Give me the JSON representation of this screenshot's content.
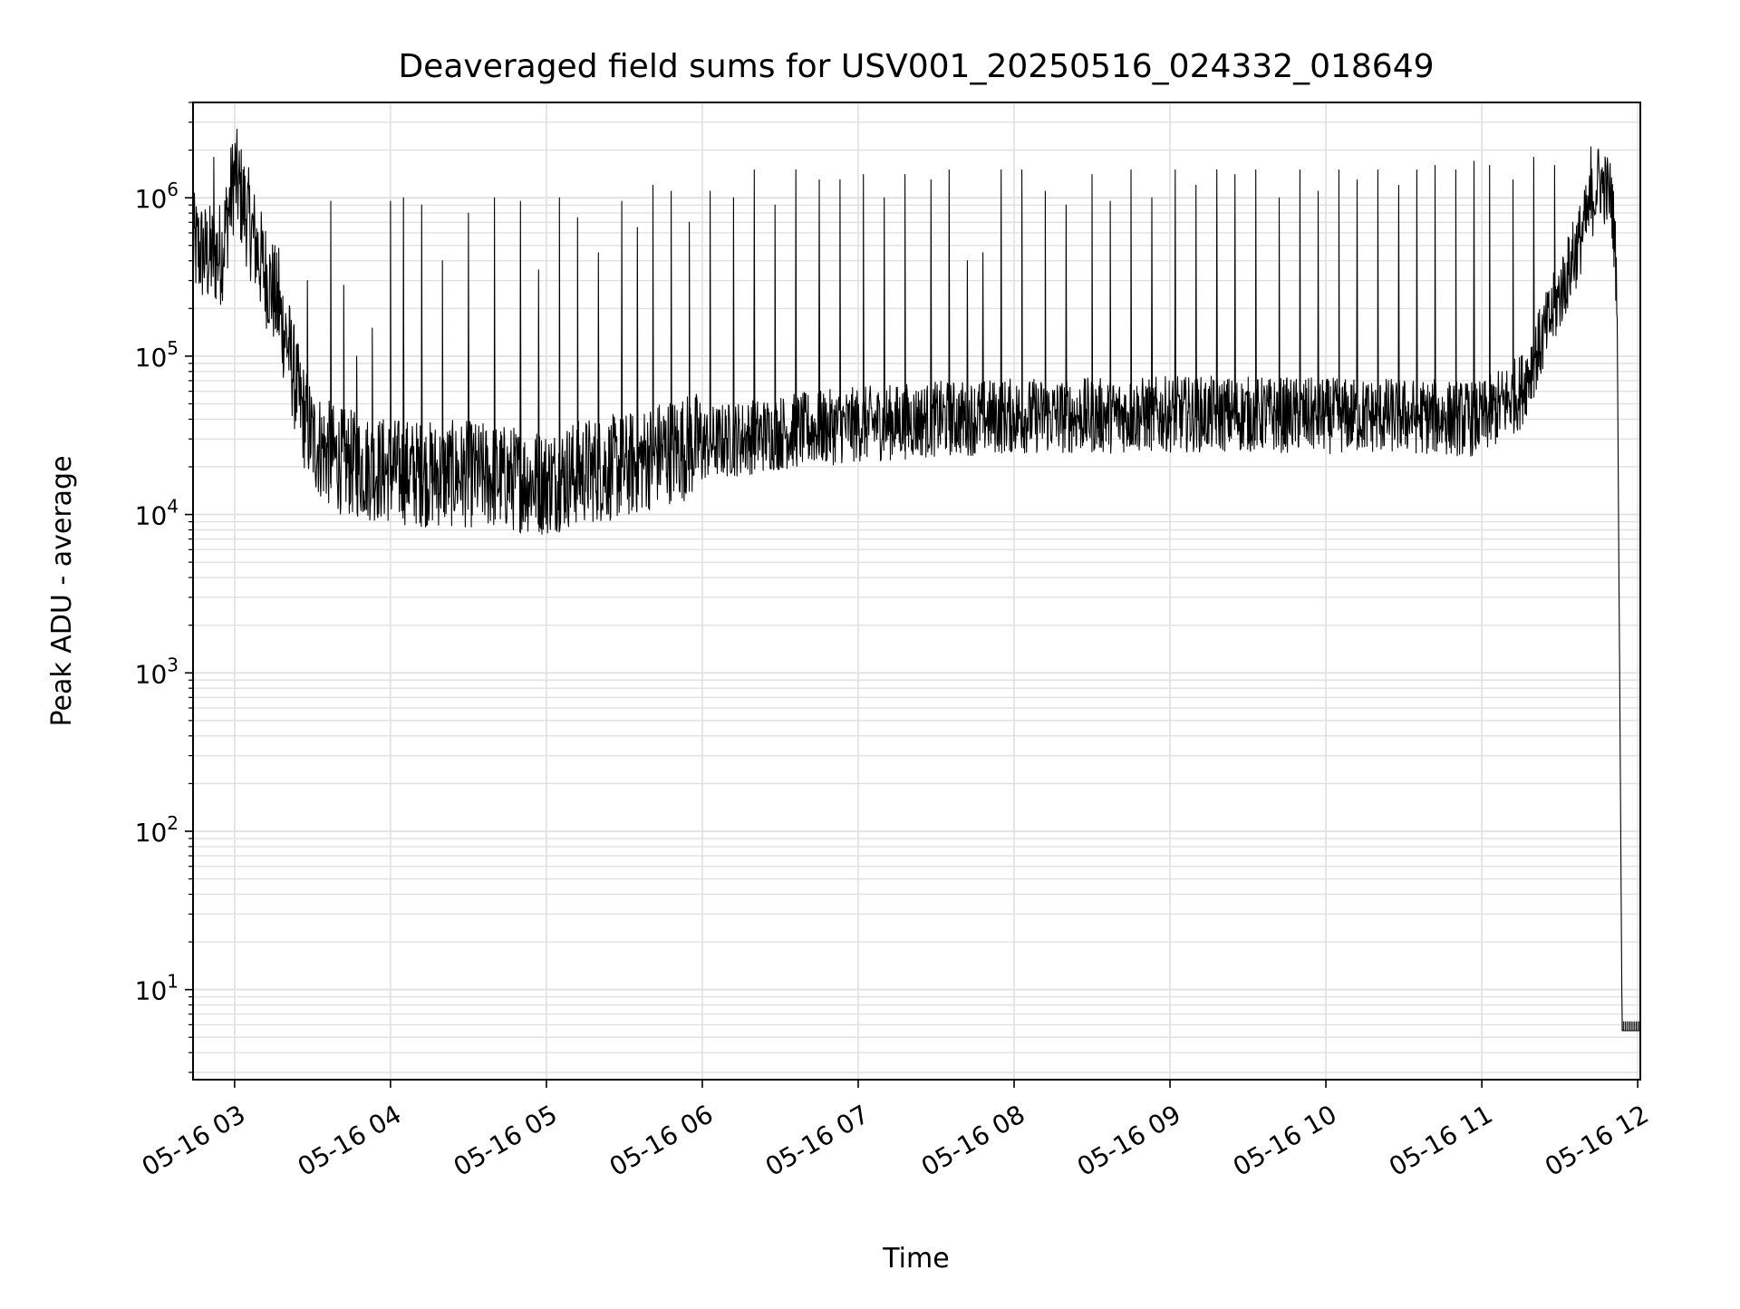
{
  "chart_data": {
    "type": "line",
    "title": "Deaveraged field sums for USV001_20250516_024332_018649",
    "xlabel": "Time",
    "ylabel": "Peak ADU - average",
    "yscale": "log",
    "ylim": [
      2.7,
      4000000
    ],
    "xlim": [
      "05-16 02:44",
      "05-16 12:01"
    ],
    "grid": true,
    "legend": "none",
    "x_ticks": [
      "05-16 03",
      "05-16 04",
      "05-16 05",
      "05-16 06",
      "05-16 07",
      "05-16 08",
      "05-16 09",
      "05-16 10",
      "05-16 11",
      "05-16 12"
    ],
    "y_ticks": [
      {
        "base": "10",
        "exp": "1"
      },
      {
        "base": "10",
        "exp": "2"
      },
      {
        "base": "10",
        "exp": "3"
      },
      {
        "base": "10",
        "exp": "4"
      },
      {
        "base": "10",
        "exp": "5"
      },
      {
        "base": "10",
        "exp": "6"
      }
    ],
    "line_color": "#000000",
    "grid_color": "#e0e0e0",
    "series": [
      {
        "x": [
          "05-16 02:44",
          "05-16 02:50",
          "05-16 02:55",
          "05-16 03:00",
          "05-16 03:05",
          "05-16 03:10",
          "05-16 03:15",
          "05-16 03:20",
          "05-16 03:25",
          "05-16 03:30",
          "05-16 03:35",
          "05-16 03:40",
          "05-16 03:50",
          "05-16 04:00",
          "05-16 04:15",
          "05-16 04:30",
          "05-16 04:45",
          "05-16 05:00",
          "05-16 05:15",
          "05-16 05:30",
          "05-16 05:45",
          "05-16 06:00",
          "05-16 06:30",
          "05-16 07:00",
          "05-16 07:30",
          "05-16 08:00",
          "05-16 08:30",
          "05-16 09:00",
          "05-16 09:30",
          "05-16 10:00",
          "05-16 10:30",
          "05-16 11:00",
          "05-16 11:15",
          "05-16 11:25",
          "05-16 11:35",
          "05-16 11:40",
          "05-16 11:45",
          "05-16 11:50",
          "05-16 11:52",
          "05-16 11:54",
          "05-16 12:01"
        ],
        "values": [
          500000,
          420000,
          450000,
          1400000,
          750000,
          400000,
          250000,
          130000,
          50000,
          30000,
          25000,
          22000,
          20000,
          19000,
          18000,
          18000,
          17000,
          16000,
          19000,
          20000,
          25000,
          28000,
          33000,
          37000,
          40000,
          42000,
          42000,
          43000,
          43000,
          42000,
          42000,
          40000,
          60000,
          150000,
          400000,
          700000,
          1300000,
          1000000,
          300000,
          5.5,
          5.5
        ],
        "spikes": [
          [
            "05-16 02:52",
            1800000
          ],
          [
            "05-16 03:17",
            480000
          ],
          [
            "05-16 03:28",
            300000
          ],
          [
            "05-16 03:37",
            950000
          ],
          [
            "05-16 03:42",
            280000
          ],
          [
            "05-16 03:47",
            100000
          ],
          [
            "05-16 03:53",
            150000
          ],
          [
            "05-16 04:00",
            950000
          ],
          [
            "05-16 04:05",
            1000000
          ],
          [
            "05-16 04:12",
            900000
          ],
          [
            "05-16 04:20",
            400000
          ],
          [
            "05-16 04:30",
            800000
          ],
          [
            "05-16 04:40",
            1000000
          ],
          [
            "05-16 04:50",
            950000
          ],
          [
            "05-16 04:57",
            350000
          ],
          [
            "05-16 05:05",
            1000000
          ],
          [
            "05-16 05:12",
            750000
          ],
          [
            "05-16 05:20",
            450000
          ],
          [
            "05-16 05:29",
            950000
          ],
          [
            "05-16 05:35",
            650000
          ],
          [
            "05-16 05:41",
            1200000
          ],
          [
            "05-16 05:48",
            1100000
          ],
          [
            "05-16 05:55",
            700000
          ],
          [
            "05-16 06:03",
            1100000
          ],
          [
            "05-16 06:12",
            1000000
          ],
          [
            "05-16 06:20",
            1500000
          ],
          [
            "05-16 06:28",
            900000
          ],
          [
            "05-16 06:36",
            1500000
          ],
          [
            "05-16 06:45",
            1300000
          ],
          [
            "05-16 06:53",
            1300000
          ],
          [
            "05-16 07:02",
            1400000
          ],
          [
            "05-16 07:10",
            1000000
          ],
          [
            "05-16 07:18",
            1400000
          ],
          [
            "05-16 07:28",
            1300000
          ],
          [
            "05-16 07:35",
            1500000
          ],
          [
            "05-16 07:42",
            400000
          ],
          [
            "05-16 07:48",
            450000
          ],
          [
            "05-16 07:55",
            1500000
          ],
          [
            "05-16 08:03",
            1500000
          ],
          [
            "05-16 08:12",
            1100000
          ],
          [
            "05-16 08:20",
            900000
          ],
          [
            "05-16 08:30",
            1400000
          ],
          [
            "05-16 08:37",
            950000
          ],
          [
            "05-16 08:45",
            1500000
          ],
          [
            "05-16 08:53",
            1000000
          ],
          [
            "05-16 09:02",
            1500000
          ],
          [
            "05-16 09:10",
            1200000
          ],
          [
            "05-16 09:18",
            1500000
          ],
          [
            "05-16 09:25",
            1400000
          ],
          [
            "05-16 09:33",
            1500000
          ],
          [
            "05-16 09:42",
            1000000
          ],
          [
            "05-16 09:50",
            1500000
          ],
          [
            "05-16 09:57",
            1100000
          ],
          [
            "05-16 10:05",
            1500000
          ],
          [
            "05-16 10:12",
            1300000
          ],
          [
            "05-16 10:20",
            1500000
          ],
          [
            "05-16 10:28",
            1200000
          ],
          [
            "05-16 10:35",
            1500000
          ],
          [
            "05-16 10:42",
            1600000
          ],
          [
            "05-16 10:50",
            1500000
          ],
          [
            "05-16 10:57",
            1700000
          ],
          [
            "05-16 11:03",
            1600000
          ],
          [
            "05-16 11:12",
            1300000
          ],
          [
            "05-16 11:20",
            1800000
          ],
          [
            "05-16 11:28",
            1600000
          ],
          [
            "05-16 11:35",
            700000
          ],
          [
            "05-16 11:42",
            2100000
          ],
          [
            "05-16 11:46",
            1500000
          ]
        ]
      }
    ]
  }
}
